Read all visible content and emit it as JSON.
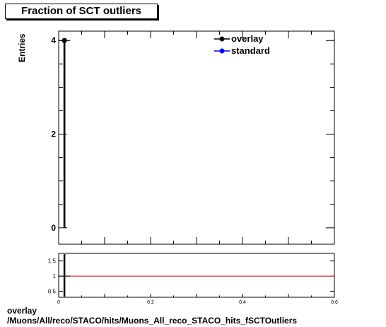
{
  "chart_data": {
    "type": "line",
    "title": "Fraction of SCT outliers",
    "ylabel": "Entries",
    "xlim": [
      0,
      0.6
    ],
    "ylim": [
      -0.35,
      4.2
    ],
    "yticks_major": [
      0,
      2,
      4
    ],
    "xticks": [
      0,
      0.2,
      0.4,
      0.6
    ],
    "xtick_labels": [
      "0",
      "0.2",
      "0.4",
      "0.6"
    ],
    "grid": false,
    "legend_position": "top-right",
    "series": [
      {
        "name": "overlay",
        "color": "#000000",
        "marker": "circle",
        "x": [
          0.0125
        ],
        "y": [
          4
        ]
      },
      {
        "name": "standard",
        "color": "#0000ff",
        "marker": "circle",
        "x": [
          0.0125
        ],
        "y": [
          4
        ]
      }
    ],
    "ratio_panel": {
      "ylim": [
        0.3,
        1.75
      ],
      "yticks": [
        0.5,
        1,
        1.5
      ],
      "ytick_labels": [
        "0.5",
        "1",
        "1.5"
      ],
      "reference_line": 1,
      "reference_color": "#cc0000",
      "x": [
        0.0125
      ],
      "y": [
        1
      ]
    }
  },
  "footer": {
    "line1": "overlay",
    "line2": "/Muons/All/reco/STACO/hits/Muons_All_reco_STACO_hits_fSCTOutliers"
  }
}
